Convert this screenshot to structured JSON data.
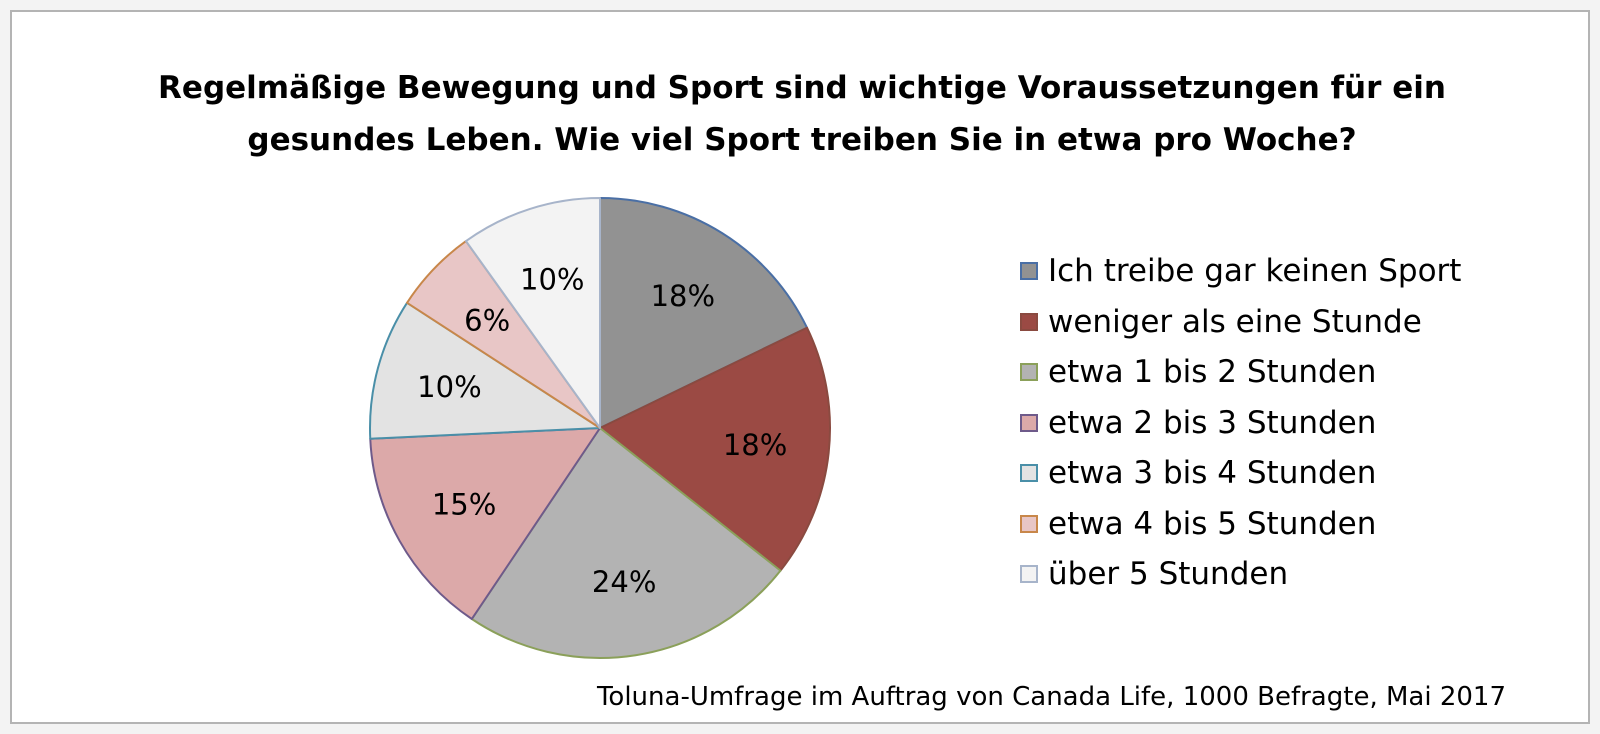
{
  "chart_data": {
    "type": "pie",
    "title_lines": [
      "Regelmäßige Bewegung und Sport sind wichtige Voraussetzungen für ein",
      "gesundes Leben. Wie viel Sport treiben Sie in etwa pro Woche?"
    ],
    "slices": [
      {
        "label": "Ich treibe gar keinen Sport",
        "value": 18,
        "value_label": "18%",
        "fill": "#929292",
        "stroke": "#4a6fa5"
      },
      {
        "label": "weniger als eine Stunde",
        "value": 18,
        "value_label": "18%",
        "fill": "#9b4a44",
        "stroke": "#8a4a40"
      },
      {
        "label": "etwa 1 bis 2 Stunden",
        "value": 24,
        "value_label": "24%",
        "fill": "#b3b3b3",
        "stroke": "#8ba05a"
      },
      {
        "label": "etwa 2 bis 3 Stunden",
        "value": 15,
        "value_label": "15%",
        "fill": "#dca9a9",
        "stroke": "#6e5a8a"
      },
      {
        "label": "etwa 3 bis 4 Stunden",
        "value": 10,
        "value_label": "10%",
        "fill": "#e3e3e3",
        "stroke": "#4a8fa8"
      },
      {
        "label": "etwa 4 bis 5 Stunden",
        "value": 6,
        "value_label": "6%",
        "fill": "#e8c6c6",
        "stroke": "#c8874a"
      },
      {
        "label": "über 5 Stunden",
        "value": 10,
        "value_label": "10%",
        "fill": "#f3f3f3",
        "stroke": "#a7b4ca"
      }
    ],
    "legend_position": "right",
    "source": "Toluna-Umfrage im Auftrag von Canada Life, 1000 Befragte, Mai 2017"
  }
}
